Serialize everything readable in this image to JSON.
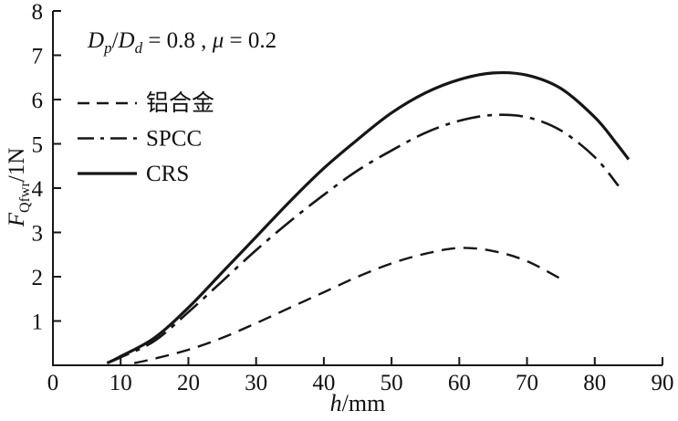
{
  "figure": {
    "background": "#ffffff",
    "line_color": "#161616"
  },
  "annotation": {
    "s1": "D",
    "s1sub": "p",
    "s2": "/",
    "s3": "D",
    "s3sub": "d",
    "s4": " = 0.8 ,  ",
    "s5": "μ",
    "s6": " = 0.2"
  },
  "axis_labels": {
    "x_var": "h",
    "x_unit": "/mm",
    "y_var": "F",
    "y_sub": "Qfwr",
    "y_unit": "/1N"
  },
  "chart_data": {
    "type": "line",
    "title": "",
    "xlabel": "h/mm",
    "ylabel": "F_Qfwr/1N",
    "xlim": [
      0,
      90
    ],
    "ylim": [
      0,
      8
    ],
    "x_ticks": [
      0,
      10,
      20,
      30,
      40,
      50,
      60,
      70,
      80,
      90
    ],
    "y_ticks": [
      0,
      1,
      2,
      3,
      4,
      5,
      6,
      7,
      8
    ],
    "grid": false,
    "legend_position": "upper-left",
    "annotation": "Dp/Dd = 0.8 , μ = 0.2",
    "series": [
      {
        "name": "铝合金",
        "style": "dashed",
        "x": [
          12,
          15,
          20,
          25,
          30,
          35,
          40,
          45,
          50,
          55,
          60,
          65,
          70,
          75
        ],
        "y": [
          0.05,
          0.15,
          0.35,
          0.62,
          0.95,
          1.3,
          1.65,
          2.0,
          2.3,
          2.52,
          2.65,
          2.58,
          2.35,
          1.95
        ]
      },
      {
        "name": "SPCC",
        "style": "dashdot",
        "x": [
          8,
          10,
          15,
          20,
          25,
          30,
          35,
          40,
          45,
          50,
          55,
          60,
          65,
          70,
          75,
          80,
          83.5
        ],
        "y": [
          0.05,
          0.18,
          0.55,
          1.2,
          1.9,
          2.6,
          3.25,
          3.85,
          4.4,
          4.85,
          5.25,
          5.52,
          5.65,
          5.6,
          5.3,
          4.7,
          4.05
        ]
      },
      {
        "name": "CRS",
        "style": "solid",
        "x": [
          8,
          10,
          15,
          20,
          25,
          30,
          35,
          40,
          45,
          50,
          55,
          60,
          65,
          70,
          75,
          80,
          83,
          85
        ],
        "y": [
          0.05,
          0.2,
          0.62,
          1.3,
          2.1,
          2.9,
          3.7,
          4.45,
          5.1,
          5.7,
          6.15,
          6.45,
          6.6,
          6.55,
          6.25,
          5.6,
          5.05,
          4.65
        ]
      }
    ]
  }
}
